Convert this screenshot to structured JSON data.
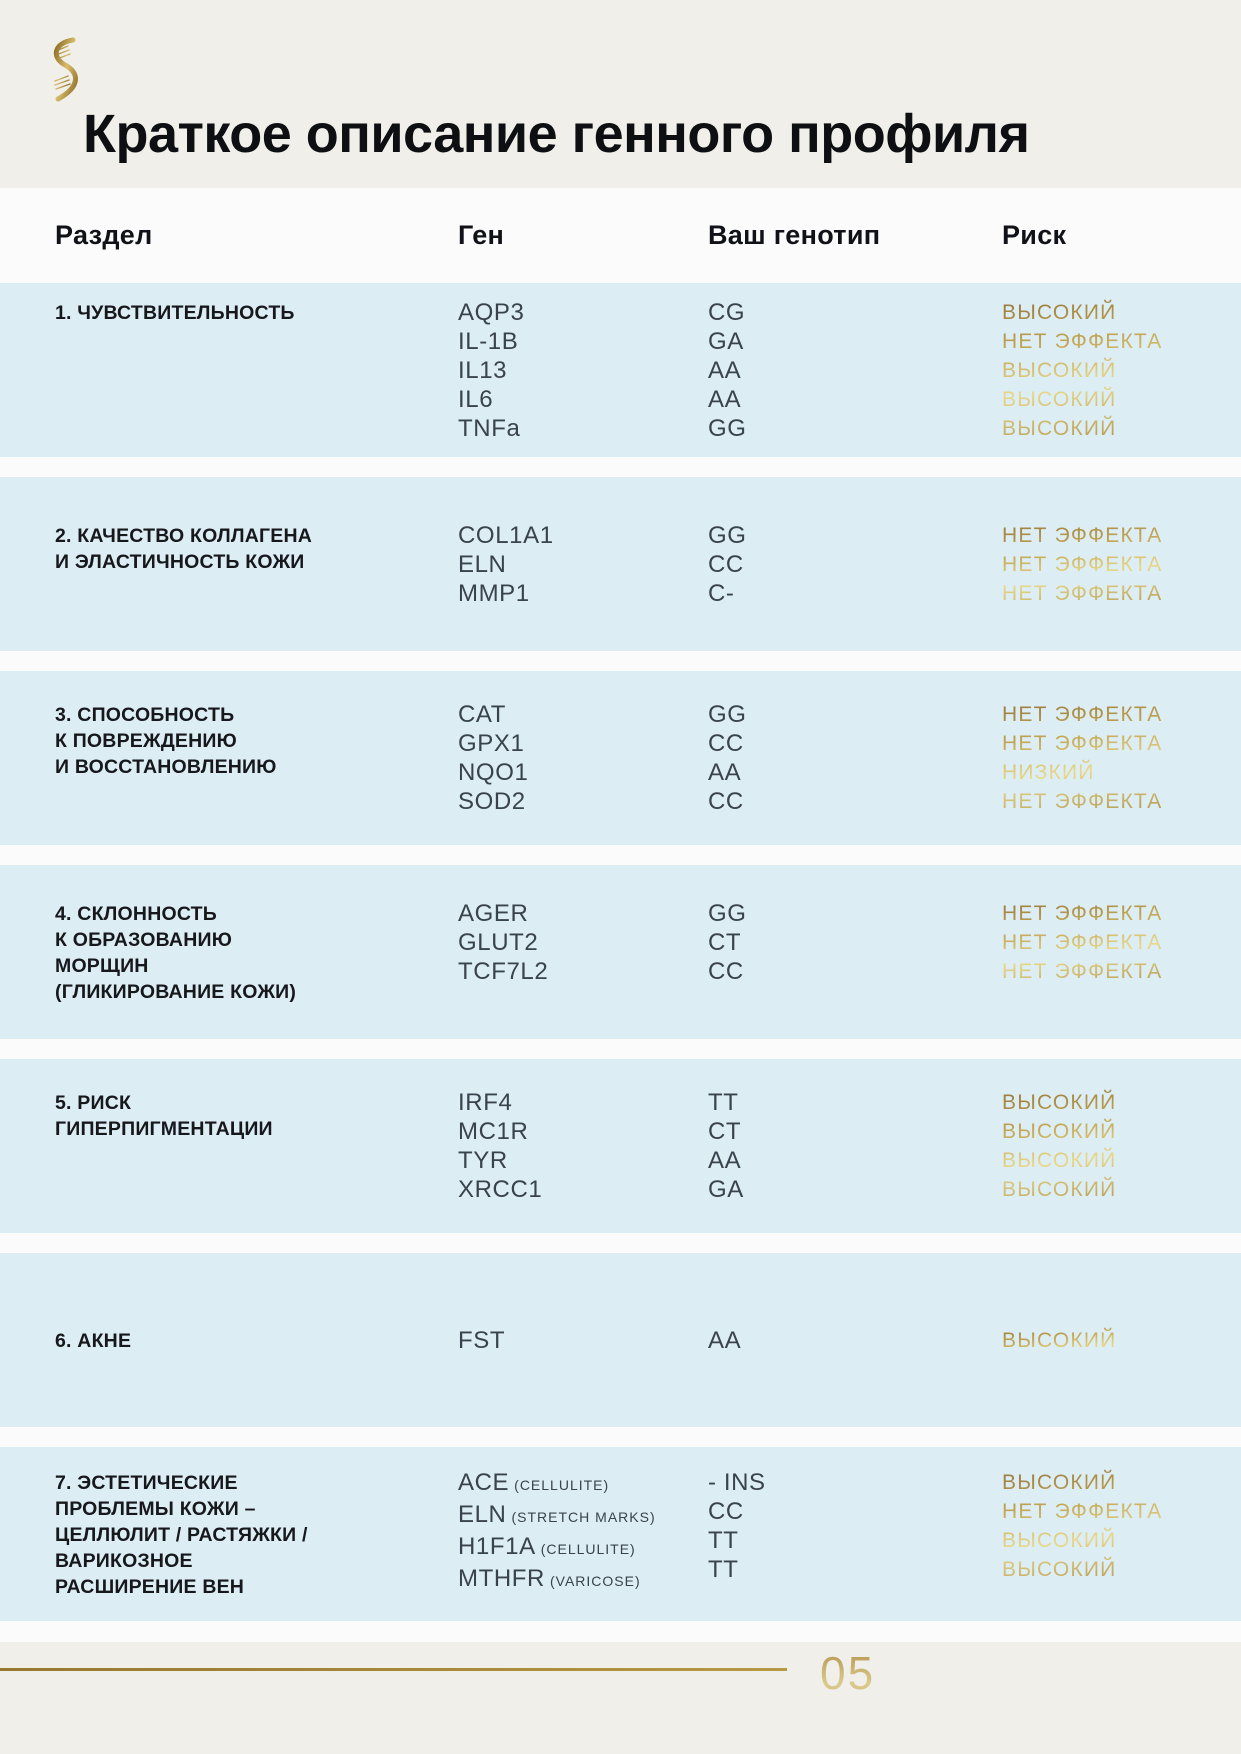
{
  "page": {
    "title": "Краткое описание генного профиля",
    "page_number": "05",
    "logo_icon": "gold-dna-helix-logo"
  },
  "colors": {
    "band_blue": "#dcedf4",
    "header_beige": "#f0efe9",
    "gap_white": "#fbfbfc",
    "gold_accent": "#b3954a",
    "text_dark": "#17181c",
    "gene_text": "#39424d"
  },
  "table": {
    "headers": {
      "section": "Раздел",
      "gene": "Ген",
      "genotype": "Ваш генотип",
      "risk": "Риск"
    },
    "sections": [
      {
        "label_lines": [
          "1. ЧУВСТВИТЕЛЬНОСТЬ"
        ],
        "rows": [
          {
            "gene": "AQP3",
            "genotype": "CG",
            "risk": "ВЫСОКИЙ"
          },
          {
            "gene": "IL-1B",
            "genotype": "GA",
            "risk": "НЕТ ЭФФЕКТА"
          },
          {
            "gene": "IL13",
            "genotype": "AA",
            "risk": "ВЫСОКИЙ"
          },
          {
            "gene": "IL6",
            "genotype": "AA",
            "risk": "ВЫСОКИЙ"
          },
          {
            "gene": "TNFa",
            "genotype": "GG",
            "risk": "ВЫСОКИЙ"
          }
        ]
      },
      {
        "label_lines": [
          "2. КАЧЕСТВО КОЛЛАГЕНА",
          "И ЭЛАСТИЧНОСТЬ КОЖИ"
        ],
        "rows": [
          {
            "gene": "COL1A1",
            "genotype": "GG",
            "risk": "НЕТ ЭФФЕКТА"
          },
          {
            "gene": "ELN",
            "genotype": "CC",
            "risk": "НЕТ ЭФФЕКТА"
          },
          {
            "gene": "MMP1",
            "genotype": "C-",
            "risk": "НЕТ ЭФФЕКТА"
          }
        ]
      },
      {
        "label_lines": [
          "3. СПОСОБНОСТЬ",
          "К ПОВРЕЖДЕНИЮ",
          "И ВОССТАНОВЛЕНИЮ"
        ],
        "rows": [
          {
            "gene": "CAT",
            "genotype": "GG",
            "risk": "НЕТ ЭФФЕКТА"
          },
          {
            "gene": "GPX1",
            "genotype": "CC",
            "risk": "НЕТ ЭФФЕКТА"
          },
          {
            "gene": "NQO1",
            "genotype": "AA",
            "risk": "НИЗКИЙ"
          },
          {
            "gene": "SOD2",
            "genotype": "CC",
            "risk": "НЕТ ЭФФЕКТА"
          }
        ]
      },
      {
        "label_lines": [
          "4. СКЛОННОСТЬ",
          "К ОБРАЗОВАНИЮ",
          "МОРЩИН",
          "(ГЛИКИРОВАНИЕ КОЖИ)"
        ],
        "rows": [
          {
            "gene": "AGER",
            "genotype": "GG",
            "risk": "НЕТ ЭФФЕКТА"
          },
          {
            "gene": "GLUT2",
            "genotype": "CT",
            "risk": "НЕТ ЭФФЕКТА"
          },
          {
            "gene": "TCF7L2",
            "genotype": "CC",
            "risk": "НЕТ ЭФФЕКТА"
          }
        ]
      },
      {
        "label_lines": [
          "5. РИСК",
          "ГИПЕРПИГМЕНТАЦИИ"
        ],
        "rows": [
          {
            "gene": "IRF4",
            "genotype": "TT",
            "risk": "ВЫСОКИЙ"
          },
          {
            "gene": "MC1R",
            "genotype": "CT",
            "risk": "ВЫСОКИЙ"
          },
          {
            "gene": "TYR",
            "genotype": "AA",
            "risk": "ВЫСОКИЙ"
          },
          {
            "gene": "XRCC1",
            "genotype": "GA",
            "risk": "ВЫСОКИЙ"
          }
        ]
      },
      {
        "label_lines": [
          "6. АКНЕ"
        ],
        "rows": [
          {
            "gene": "FST",
            "genotype": "AA",
            "risk": "ВЫСОКИЙ"
          }
        ]
      },
      {
        "label_lines": [
          "7. ЭСТЕТИЧЕСКИЕ",
          "ПРОБЛЕМЫ КОЖИ –",
          "ЦЕЛЛЮЛИТ / РАСТЯЖКИ /",
          "ВАРИКОЗНОЕ",
          "РАСШИРЕНИЕ ВЕН"
        ],
        "rows": [
          {
            "gene": "ACE",
            "note": "(CELLULITE)",
            "genotype": "- INS",
            "risk": "ВЫСОКИЙ"
          },
          {
            "gene": "ELN",
            "note": "(STRETCH MARKS)",
            "genotype": "CC",
            "risk": "НЕТ ЭФФЕКТА"
          },
          {
            "gene": "H1F1A",
            "note": "(CELLULITE)",
            "genotype": "TT",
            "risk": "ВЫСОКИЙ"
          },
          {
            "gene": "MTHFR",
            "note": "(VARICOSE)",
            "genotype": "TT",
            "risk": "ВЫСОКИЙ"
          }
        ]
      }
    ]
  }
}
